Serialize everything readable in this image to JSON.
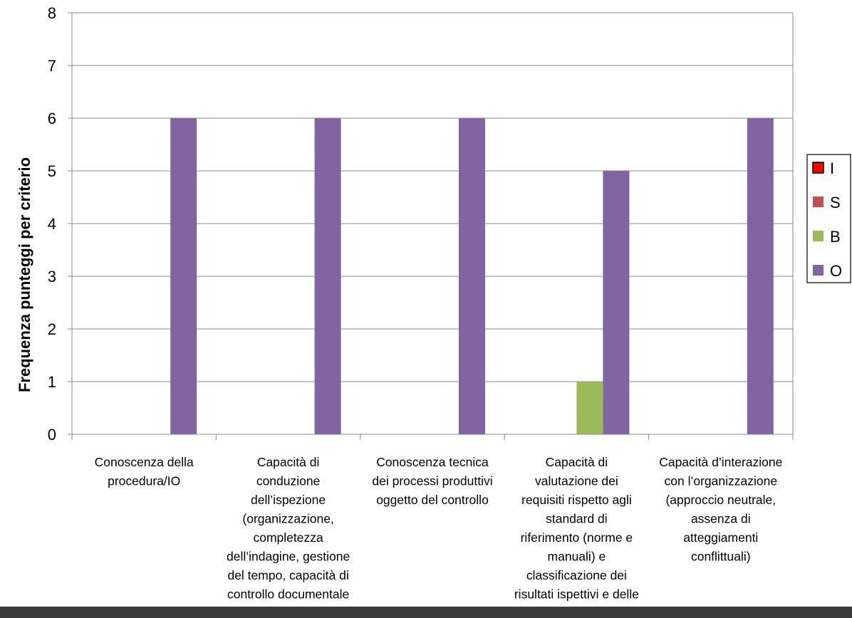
{
  "chart_data": {
    "type": "bar",
    "title": "",
    "xlabel": "",
    "ylabel": "Frequenza punteggi per criterio",
    "ylim": [
      0,
      8
    ],
    "yticks": [
      "0",
      "1",
      "2",
      "3",
      "4",
      "5",
      "6",
      "7",
      "8"
    ],
    "grid": "horizontal",
    "legend_position": "right",
    "categories": [
      "Conoscenza della procedura/IO",
      "Capacità di conduzione dell’ispezione (organizzazione, completezza dell’indagine, gestione del tempo, capacità di controllo documentale",
      "Conoscenza tecnica dei processi produttivi oggetto del controllo",
      "Capacità di valutazione dei requisiti rispetto agli standard di riferimento (norme e manuali) e classificazione dei risultati ispettivi e delle",
      "Capacità d’interazione con l’organizzazione (approccio neutrale, assenza di atteggiamenti conflittuali)"
    ],
    "category_lines": [
      [
        "Conoscenza della",
        "procedura/IO"
      ],
      [
        "Capacità di",
        "conduzione",
        "dell’ispezione",
        "(organizzazione,",
        "completezza",
        "dell’indagine, gestione",
        "del tempo, capacità di",
        "controllo documentale"
      ],
      [
        "Conoscenza tecnica",
        "dei processi produttivi",
        "oggetto del controllo"
      ],
      [
        "Capacità di",
        "valutazione dei",
        "requisiti rispetto agli",
        "standard di",
        "riferimento (norme e",
        "manuali) e",
        "classificazione dei",
        "risultati ispettivi e delle"
      ],
      [
        "Capacità d’interazione",
        "con l’organizzazione",
        "(approccio neutrale,",
        "assenza di",
        "atteggiamenti",
        "conflittuali)"
      ]
    ],
    "series": [
      {
        "name": "I",
        "color": "#ff0000",
        "values": [
          0,
          0,
          0,
          0,
          0
        ]
      },
      {
        "name": "S",
        "color": "#c0504d",
        "values": [
          0,
          0,
          0,
          0,
          0
        ]
      },
      {
        "name": "B",
        "color": "#9bbb59",
        "values": [
          0,
          0,
          0,
          1,
          0
        ]
      },
      {
        "name": "O",
        "color": "#8064a2",
        "values": [
          6,
          6,
          6,
          5,
          6
        ]
      }
    ]
  }
}
